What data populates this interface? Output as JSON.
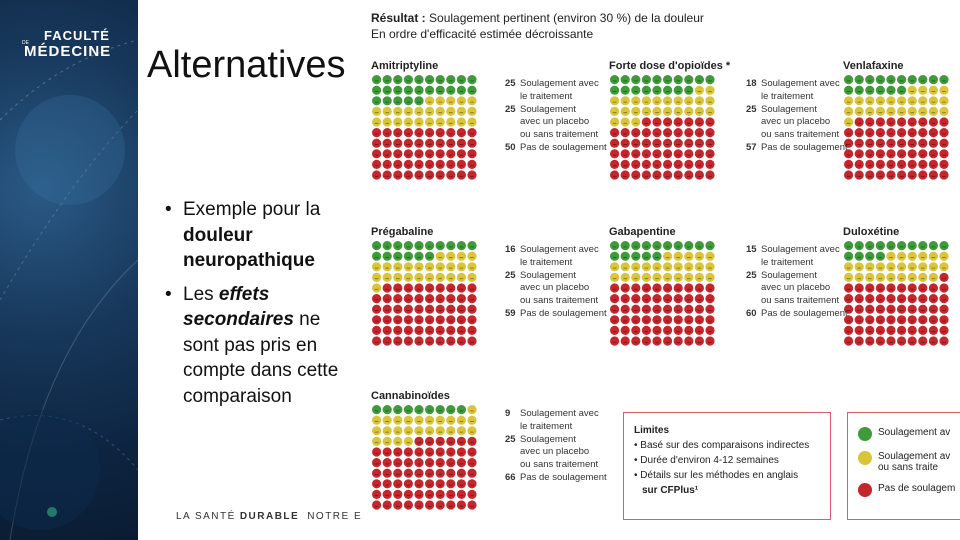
{
  "logo": {
    "line1": "FACULTÉ",
    "line2": "MÉDECINE",
    "prefix": "DE"
  },
  "slide": {
    "title": "Alternatives"
  },
  "bullets": [
    {
      "parts": [
        {
          "t": "Exemple pour la "
        },
        {
          "t": "douleur neuropathique"
        }
      ]
    },
    {
      "parts": [
        {
          "t": "Les "
        },
        {
          "t": "effets secondaires"
        },
        {
          "t": " ne sont pas pris en compte dans cette comparaison"
        }
      ]
    }
  ],
  "footer": {
    "pre": "LA SANTÉ",
    "bold": "DURABLE",
    "post": "NOTRE EN"
  },
  "result": {
    "label": "Résultat :",
    "text": "Soulagement pertinent (environ 30 %) de la douleur",
    "subtitle": "En ordre d'efficacité estimée décroissante"
  },
  "colors": {
    "green": "#3f9b3a",
    "yellow": "#d9c43a",
    "red": "#c5262c",
    "box_border": "#e05a6a"
  },
  "panels": [
    {
      "title": "Amitriptyline",
      "relief": 25,
      "placebo": 25,
      "none": 50
    },
    {
      "title": "Forte dose d'opioïdes *",
      "relief": 18,
      "placebo": 25,
      "none": 57
    },
    {
      "title": "Venlafaxine",
      "relief": 16,
      "placebo": 25,
      "none": 59
    },
    {
      "title": "Prégabaline",
      "relief": 16,
      "placebo": 25,
      "none": 59
    },
    {
      "title": "Gabapentine",
      "relief": 15,
      "placebo": 25,
      "none": 60
    },
    {
      "title": "Duloxétine",
      "relief": 14,
      "placebo": 25,
      "none": 61
    },
    {
      "title": "Cannabinoïdes",
      "relief": 9,
      "placebo": 25,
      "none": 66
    }
  ],
  "stat_labels": {
    "relief": [
      "Soulagement avec",
      "le traitement"
    ],
    "placebo": [
      "Soulagement",
      "avec un placebo",
      "ou sans traitement"
    ],
    "none": [
      "Pas de soulagement"
    ]
  },
  "limits": {
    "title": "Limites",
    "items": [
      "• Basé sur des comparaisons indirectes",
      "• Durée d'environ 4-12 semaines",
      "• Détails sur les méthodes en anglais",
      "sur CFPlus¹"
    ]
  },
  "legend": [
    {
      "color": "green",
      "lines": [
        "Soulagement av"
      ]
    },
    {
      "color": "yellow",
      "lines": [
        "Soulagement av",
        "ou sans traite"
      ]
    },
    {
      "color": "red",
      "lines": [
        "Pas de soulagem"
      ]
    }
  ]
}
